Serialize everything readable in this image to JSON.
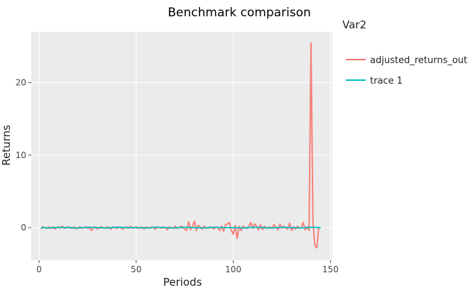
{
  "chart_data": {
    "type": "line",
    "title": "Benchmark comparison",
    "xlabel": "Periods",
    "ylabel": "Returns",
    "xlim": [
      -4,
      151
    ],
    "ylim": [
      -4.5,
      27
    ],
    "x_ticks": [
      0,
      50,
      100,
      150
    ],
    "y_ticks": [
      0,
      10,
      20
    ],
    "grid": true,
    "legend": {
      "title": "Var2",
      "position": "right"
    },
    "panel_color": "#ebebeb",
    "grid_color": "#ffffff",
    "series": [
      {
        "name": "adjusted_returns_out",
        "color": "#f8766d",
        "x": [
          1,
          2,
          3,
          4,
          5,
          6,
          7,
          8,
          9,
          10,
          11,
          12,
          13,
          14,
          15,
          16,
          17,
          18,
          19,
          20,
          21,
          22,
          23,
          24,
          25,
          26,
          27,
          28,
          29,
          30,
          31,
          32,
          33,
          34,
          35,
          36,
          37,
          38,
          39,
          40,
          41,
          42,
          43,
          44,
          45,
          46,
          47,
          48,
          49,
          50,
          51,
          52,
          53,
          54,
          55,
          56,
          57,
          58,
          59,
          60,
          61,
          62,
          63,
          64,
          65,
          66,
          67,
          68,
          69,
          70,
          71,
          72,
          73,
          74,
          75,
          76,
          77,
          78,
          79,
          80,
          81,
          82,
          83,
          84,
          85,
          86,
          87,
          88,
          89,
          90,
          91,
          92,
          93,
          94,
          95,
          96,
          97,
          98,
          99,
          100,
          101,
          102,
          103,
          104,
          105,
          106,
          107,
          108,
          109,
          110,
          111,
          112,
          113,
          114,
          115,
          116,
          117,
          118,
          119,
          120,
          121,
          122,
          123,
          124,
          125,
          126,
          127,
          128,
          129,
          130,
          131,
          132,
          133,
          134,
          135,
          136,
          137,
          138,
          139,
          140,
          141,
          142,
          143,
          144
        ],
        "y": [
          -0.2,
          0.1,
          0.0,
          -0.1,
          0.1,
          -0.1,
          0.1,
          -0.2,
          0.0,
          0.1,
          -0.1,
          0.2,
          -0.1,
          0.0,
          0.1,
          0.0,
          -0.1,
          0.1,
          -0.2,
          0.0,
          0.1,
          -0.1,
          0.0,
          0.1,
          -0.1,
          0.0,
          -0.4,
          0.0,
          0.1,
          -0.2,
          0.0,
          0.1,
          0.0,
          -0.1,
          0.1,
          0.0,
          -0.2,
          0.1,
          0.0,
          -0.1,
          0.1,
          0.0,
          -0.2,
          0.0,
          0.1,
          -0.1,
          0.2,
          -0.1,
          0.0,
          0.1,
          -0.1,
          0.0,
          0.1,
          -0.2,
          0.1,
          0.0,
          -0.1,
          0.1,
          0.0,
          -0.2,
          0.1,
          0.0,
          -0.1,
          0.1,
          0.0,
          -0.3,
          0.1,
          0.0,
          -0.1,
          0.2,
          -0.1,
          0.0,
          0.2,
          0.1,
          -0.2,
          -0.4,
          0.8,
          -0.3,
          0.2,
          0.9,
          -0.4,
          0.3,
          0.1,
          -0.2,
          0.2,
          0.0,
          -0.1,
          0.1,
          0.0,
          -0.2,
          0.1,
          0.0,
          -0.4,
          0.2,
          -0.5,
          0.4,
          0.5,
          0.7,
          -0.4,
          -0.9,
          0.3,
          -1.5,
          0.2,
          -0.4,
          0.2,
          0.0,
          -0.1,
          0.2,
          0.7,
          -0.1,
          0.5,
          0.2,
          -0.3,
          0.4,
          -0.3,
          0.2,
          -0.1,
          0.0,
          0.1,
          -0.1,
          0.4,
          0.0,
          -0.3,
          0.5,
          -0.1,
          0.2,
          0.0,
          -0.2,
          0.6,
          -0.4,
          0.1,
          -0.2,
          0.2,
          -0.1,
          0.0,
          0.7,
          -0.3,
          0.1,
          -0.4,
          25.5,
          0.8,
          -2.5,
          -2.8,
          0.0
        ],
        "x_full": [
          1,
          2,
          3,
          4,
          5,
          6,
          7,
          8,
          9,
          10,
          11,
          12,
          13,
          14,
          15,
          16,
          17,
          18,
          19,
          20,
          21,
          22,
          23,
          24,
          25,
          26,
          27,
          28,
          29,
          30,
          31,
          32,
          33,
          34,
          35,
          36,
          37,
          38,
          39,
          40,
          41,
          42,
          43,
          44,
          45,
          46,
          47,
          48,
          49,
          50,
          51,
          52,
          53,
          54,
          55,
          56,
          57,
          58,
          59,
          60,
          61,
          62,
          63,
          64,
          65,
          66,
          67,
          68,
          69,
          70,
          71,
          72,
          73,
          74,
          75,
          76,
          77,
          78,
          79,
          80,
          81,
          82,
          83,
          84,
          85,
          86,
          87,
          88,
          89,
          90,
          91,
          92,
          93,
          94,
          95,
          96,
          97,
          98,
          99,
          100,
          101,
          102,
          103,
          104,
          105,
          106,
          107,
          108,
          109,
          110,
          111,
          112,
          113,
          114,
          115,
          116,
          117,
          118,
          119,
          120,
          121,
          122,
          123,
          124,
          125,
          126,
          127,
          128,
          129,
          130,
          131,
          132,
          133,
          134,
          135,
          136,
          137,
          138,
          139,
          140,
          141,
          142,
          143,
          144,
          145
        ]
      },
      {
        "name": "trace 1",
        "color": "#00bfc4",
        "x": [
          1,
          5,
          10,
          15,
          20,
          25,
          30,
          35,
          40,
          45,
          50,
          55,
          60,
          65,
          70,
          75,
          80,
          85,
          90,
          95,
          100,
          105,
          110,
          115,
          120,
          125,
          130,
          135,
          140,
          145
        ],
        "y": [
          0.0,
          -0.05,
          0.05,
          0.0,
          -0.05,
          0.05,
          0.0,
          -0.05,
          0.05,
          0.0,
          0.0,
          -0.05,
          0.05,
          0.0,
          -0.05,
          0.05,
          0.0,
          -0.05,
          0.05,
          0.0,
          0.0,
          -0.05,
          0.05,
          0.0,
          -0.05,
          0.05,
          0.0,
          -0.05,
          0.05,
          0.0
        ]
      }
    ]
  }
}
